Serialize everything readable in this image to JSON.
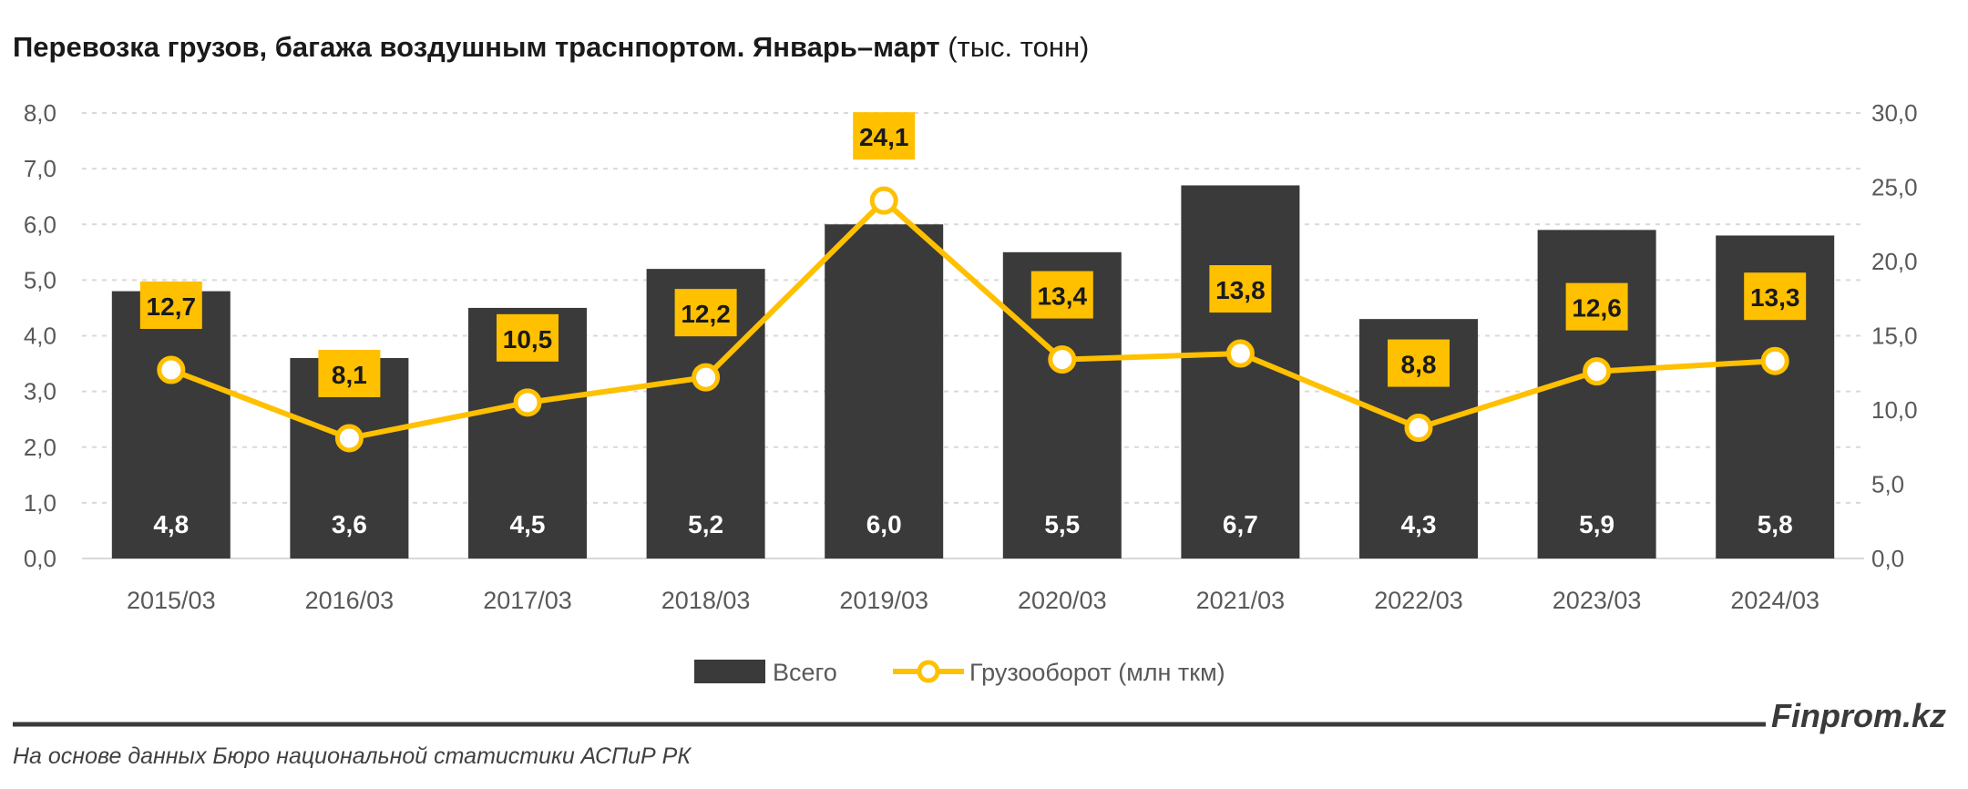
{
  "chart_data": {
    "type": "bar+line",
    "title": "Перевозка грузов, багажа воздушным траснпортом. Январь–март",
    "title_unit": "(тыс. тонн)",
    "categories": [
      "2015/03",
      "2016/03",
      "2017/03",
      "2018/03",
      "2019/03",
      "2020/03",
      "2021/03",
      "2022/03",
      "2023/03",
      "2024/03"
    ],
    "series": [
      {
        "name": "Всего",
        "type": "bar",
        "axis": "left",
        "color": "#3a3a3a",
        "values": [
          4.8,
          3.6,
          4.5,
          5.2,
          6.0,
          5.5,
          6.7,
          4.3,
          5.9,
          5.8
        ],
        "labels": [
          "4,8",
          "3,6",
          "4,5",
          "5,2",
          "6,0",
          "5,5",
          "6,7",
          "4,3",
          "5,9",
          "5,8"
        ]
      },
      {
        "name": "Грузооборот (млн ткм)",
        "type": "line",
        "axis": "right",
        "color": "#FFC000",
        "values": [
          12.7,
          8.1,
          10.5,
          12.2,
          24.1,
          13.4,
          13.8,
          8.8,
          12.6,
          13.3
        ],
        "labels": [
          "12,7",
          "8,1",
          "10,5",
          "12,2",
          "24,1",
          "13,4",
          "13,8",
          "8,8",
          "12,6",
          "13,3"
        ]
      }
    ],
    "y_left": {
      "range": [
        0,
        8
      ],
      "ticks": [
        "0,0",
        "1,0",
        "2,0",
        "3,0",
        "4,0",
        "5,0",
        "6,0",
        "7,0",
        "8,0"
      ]
    },
    "y_right": {
      "range": [
        0,
        30
      ],
      "ticks": [
        "0,0",
        "5,0",
        "10,0",
        "15,0",
        "20,0",
        "25,0",
        "30,0"
      ]
    },
    "grid": true,
    "legend_position": "bottom"
  },
  "footer": {
    "brand": "Finprom.kz",
    "source": "На основе данных Бюро национальной статистики АСПиР РК"
  }
}
